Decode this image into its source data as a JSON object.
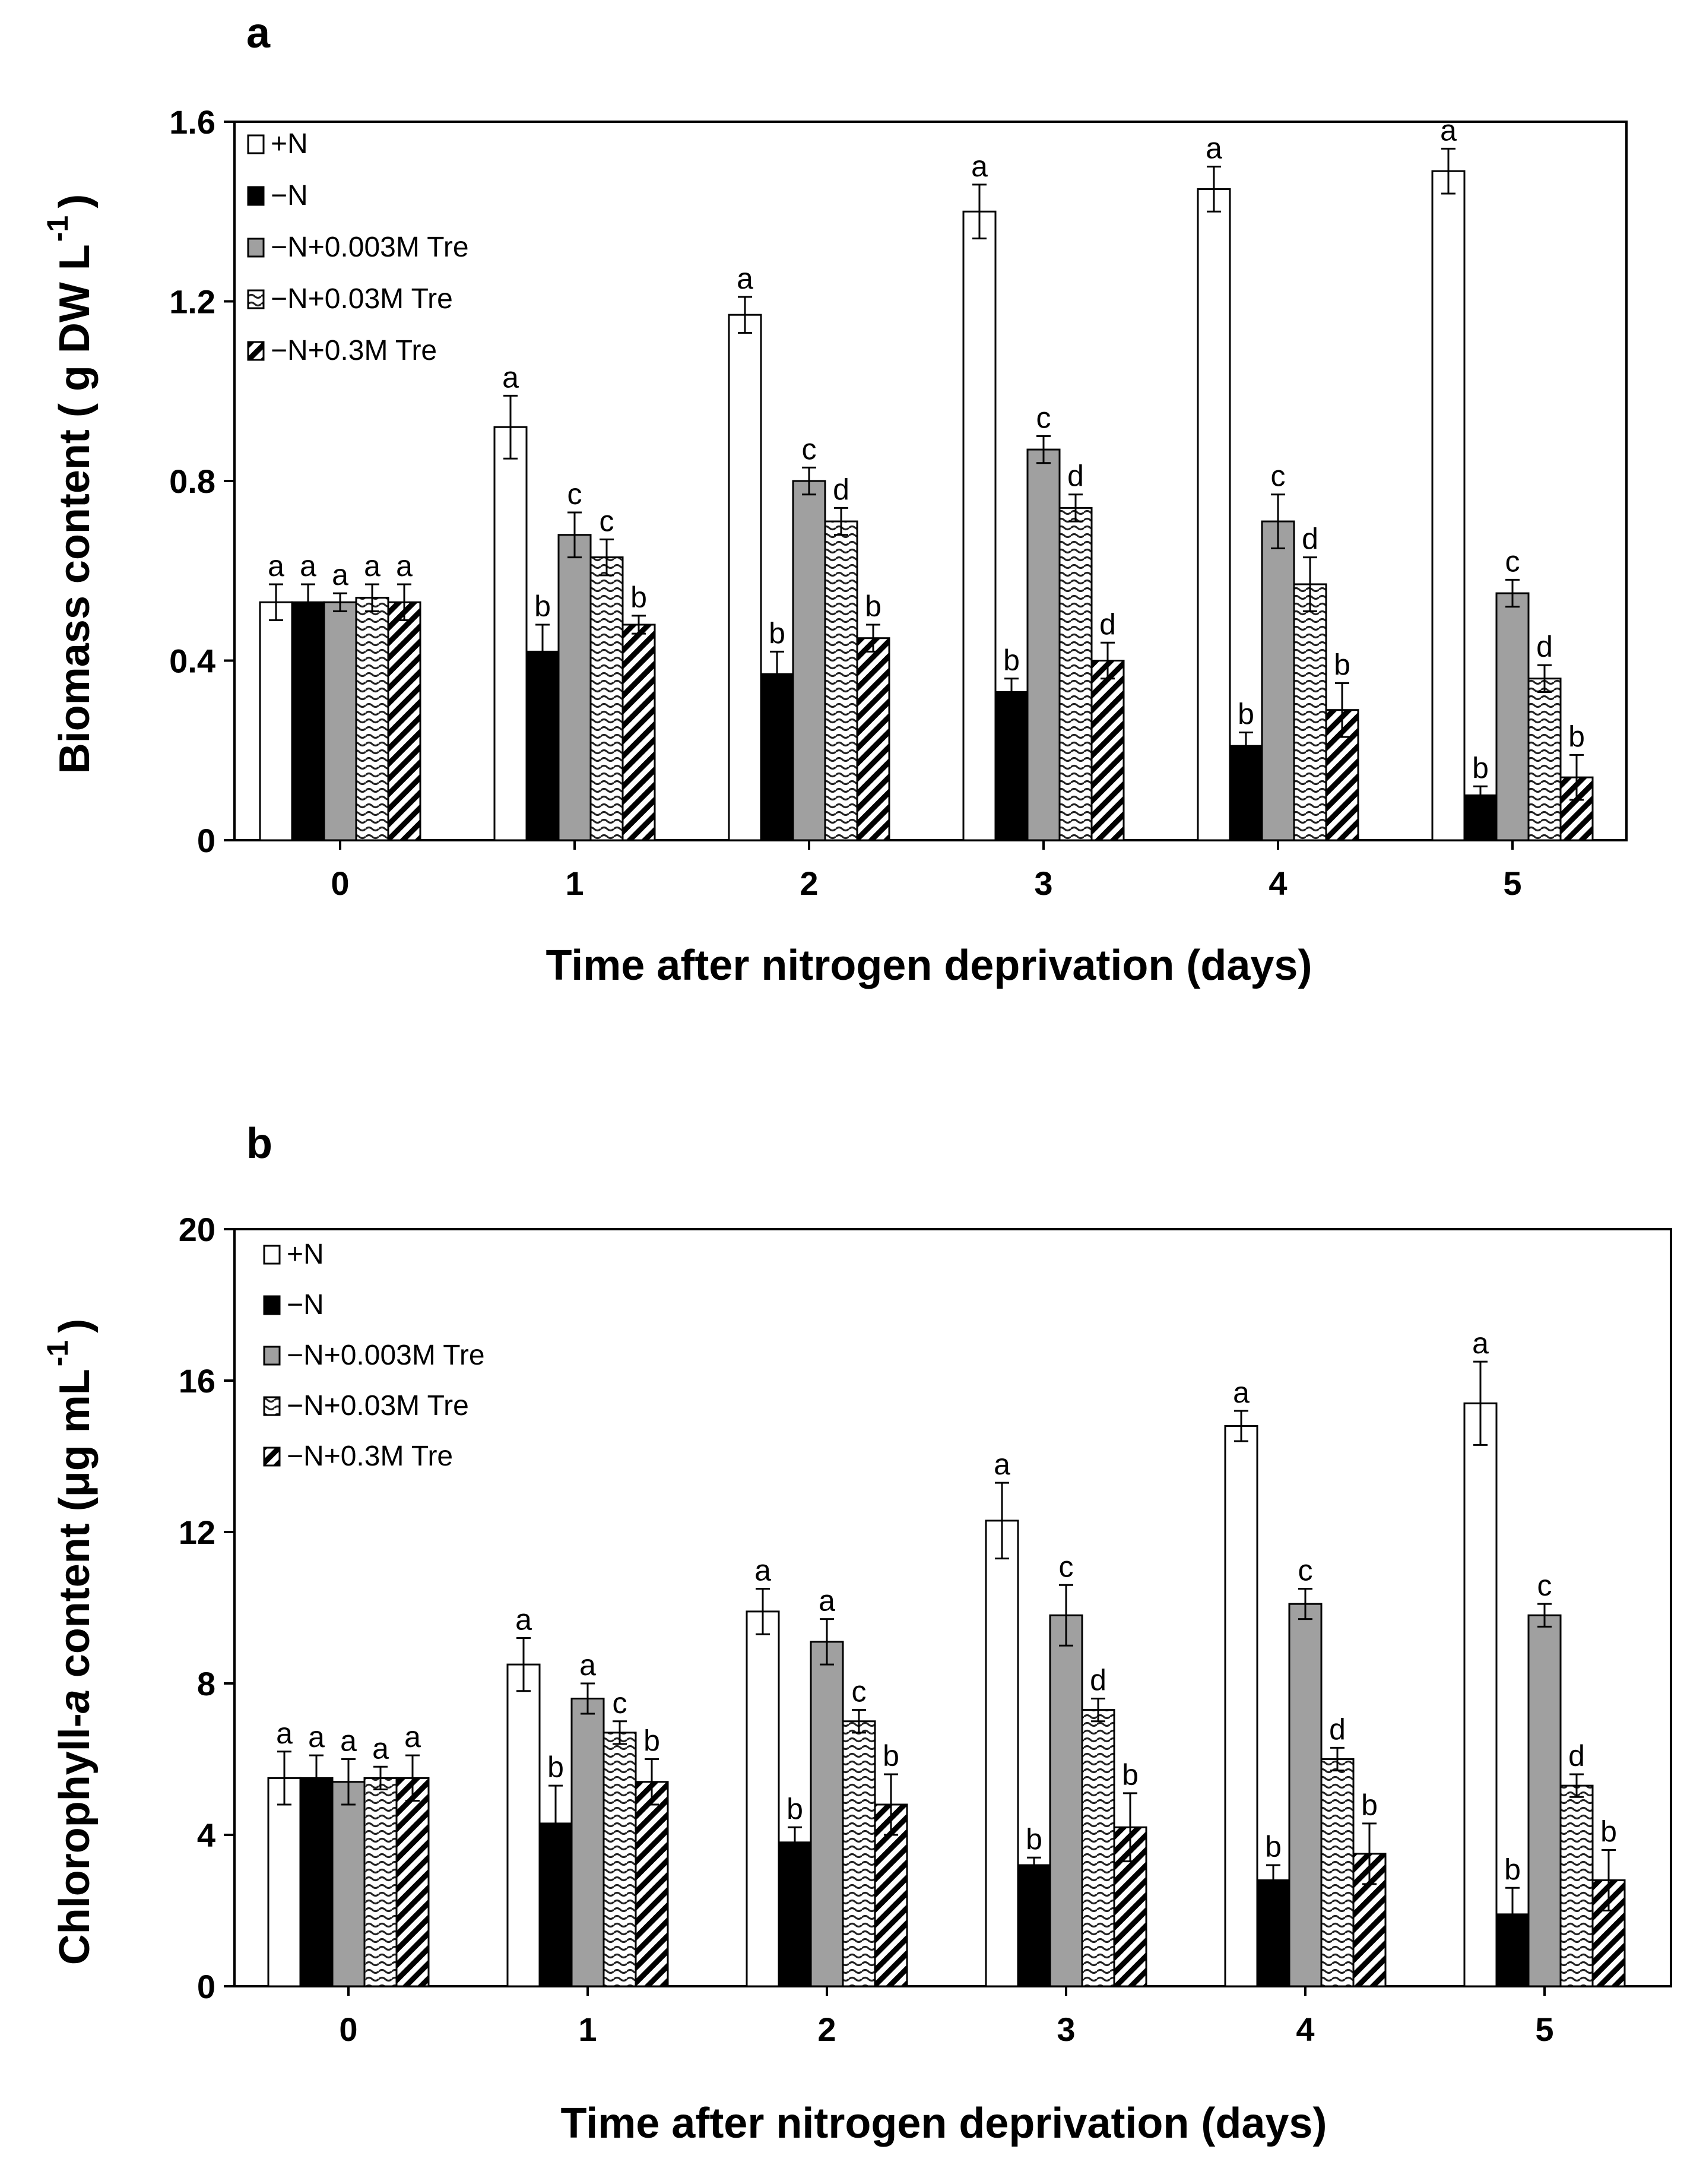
{
  "chart_data": [
    {
      "type": "bar",
      "panel_label": "a",
      "title": "",
      "xlabel": "Time after nitrogen deprivation (days)",
      "ylabel": "Biomass content ( g DW L",
      "ylabel_sup": "-1",
      "ylabel_close": ")",
      "ylim": [
        0,
        1.6
      ],
      "yticks": [
        0,
        0.4,
        0.8,
        1.2,
        1.6
      ],
      "ytick_labels": [
        "0",
        "0.4",
        "0.8",
        "1.2",
        "1.6"
      ],
      "categories": [
        "0",
        "1",
        "2",
        "3",
        "4",
        "5"
      ],
      "legend_position": "top-left",
      "series": [
        {
          "name": "+N",
          "values": [
            0.53,
            0.92,
            1.17,
            1.4,
            1.45,
            1.49
          ],
          "errors": [
            0.04,
            0.07,
            0.04,
            0.06,
            0.05,
            0.05
          ],
          "letters": [
            "a",
            "a",
            "a",
            "a",
            "a",
            "a"
          ],
          "fill": "#ffffff"
        },
        {
          "name": "−N",
          "values": [
            0.53,
            0.42,
            0.37,
            0.33,
            0.21,
            0.1
          ],
          "errors": [
            0.04,
            0.06,
            0.05,
            0.03,
            0.03,
            0.02
          ],
          "letters": [
            "a",
            "b",
            "b",
            "b",
            "b",
            "b"
          ],
          "fill": "#000000"
        },
        {
          "name": "−N+0.003M Tre",
          "values": [
            0.53,
            0.68,
            0.8,
            0.87,
            0.71,
            0.55
          ],
          "errors": [
            0.02,
            0.05,
            0.03,
            0.03,
            0.06,
            0.03
          ],
          "letters": [
            "a",
            "c",
            "c",
            "c",
            "c",
            "c"
          ],
          "fill": "#a0a0a0"
        },
        {
          "name": "−N+0.03M Tre",
          "values": [
            0.54,
            0.63,
            0.71,
            0.74,
            0.57,
            0.36
          ],
          "errors": [
            0.03,
            0.04,
            0.03,
            0.03,
            0.06,
            0.03
          ],
          "letters": [
            "a",
            "c",
            "d",
            "d",
            "d",
            "d"
          ],
          "fill": "wavy"
        },
        {
          "name": "−N+0.3M Tre",
          "values": [
            0.53,
            0.48,
            0.45,
            0.4,
            0.29,
            0.14
          ],
          "errors": [
            0.04,
            0.02,
            0.03,
            0.04,
            0.06,
            0.05
          ],
          "letters": [
            "a",
            "b",
            "b",
            "d",
            "b",
            "b"
          ],
          "fill": "hatch"
        }
      ]
    },
    {
      "type": "bar",
      "panel_label": "b",
      "title": "",
      "xlabel": "Time after nitrogen deprivation (days)",
      "ylabel": "Chlorophyll-",
      "ylabel_italic": "a",
      "ylabel_rest": " content (μg mL",
      "ylabel_sup": "-1",
      "ylabel_close": ")",
      "ylim": [
        0,
        20
      ],
      "yticks": [
        0,
        4,
        8,
        12,
        16,
        20
      ],
      "ytick_labels": [
        "0",
        "4",
        "8",
        "12",
        "16",
        "20"
      ],
      "categories": [
        "0",
        "1",
        "2",
        "3",
        "4",
        "5"
      ],
      "legend_position": "top-left",
      "series": [
        {
          "name": "+N",
          "values": [
            5.5,
            8.5,
            9.9,
            12.3,
            14.8,
            15.4
          ],
          "errors": [
            0.7,
            0.7,
            0.6,
            1.0,
            0.4,
            1.1
          ],
          "letters": [
            "a",
            "a",
            "a",
            "a",
            "a",
            "a"
          ],
          "fill": "#ffffff"
        },
        {
          "name": "−N",
          "values": [
            5.5,
            4.3,
            3.8,
            3.2,
            2.8,
            1.9
          ],
          "errors": [
            0.6,
            1.0,
            0.4,
            0.2,
            0.4,
            0.7
          ],
          "letters": [
            "a",
            "b",
            "b",
            "b",
            "b",
            "b"
          ],
          "fill": "#000000"
        },
        {
          "name": "−N+0.003M Tre",
          "values": [
            5.4,
            7.6,
            9.1,
            9.8,
            10.1,
            9.8
          ],
          "errors": [
            0.6,
            0.4,
            0.6,
            0.8,
            0.4,
            0.3
          ],
          "letters": [
            "a",
            "a",
            "a",
            "c",
            "c",
            "c"
          ],
          "fill": "#a0a0a0"
        },
        {
          "name": "−N+0.03M Tre",
          "values": [
            5.5,
            6.7,
            7.0,
            7.3,
            6.0,
            5.3
          ],
          "errors": [
            0.3,
            0.3,
            0.3,
            0.3,
            0.3,
            0.3
          ],
          "letters": [
            "a",
            "c",
            "c",
            "d",
            "d",
            "d"
          ],
          "fill": "wavy"
        },
        {
          "name": "−N+0.3M Tre",
          "values": [
            5.5,
            5.4,
            4.8,
            4.2,
            3.5,
            2.8
          ],
          "errors": [
            0.6,
            0.6,
            0.8,
            0.9,
            0.8,
            0.8
          ],
          "letters": [
            "a",
            "b",
            "b",
            "b",
            "b",
            "b"
          ],
          "fill": "hatch"
        }
      ]
    }
  ]
}
